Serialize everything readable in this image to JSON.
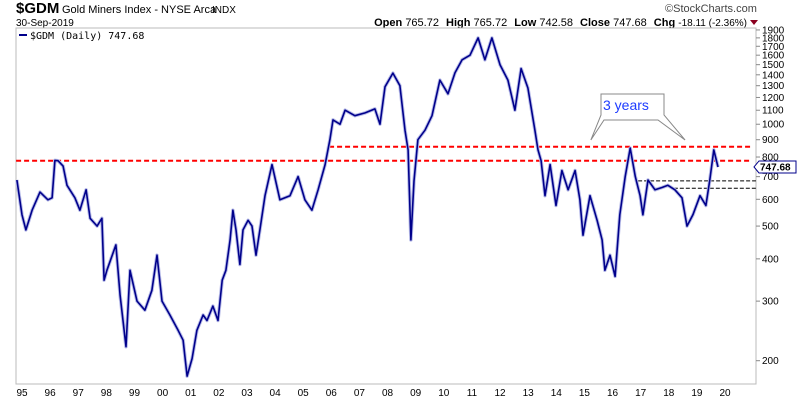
{
  "header": {
    "symbol": "$GDM",
    "name": "Gold Miners Index - NYSE Arca",
    "exchange": "INDX",
    "date": "30-Sep-2019",
    "watermark": "©StockCharts.com",
    "open_label": "Open",
    "open": "765.72",
    "high_label": "High",
    "high": "765.72",
    "low_label": "Low",
    "low": "742.58",
    "close_label": "Close",
    "close": "747.68",
    "chg_label": "Chg",
    "chg": "-18.11 (-2.36%)",
    "chg_direction": "down"
  },
  "legend": {
    "label": "$GDM (Daily) 747.68"
  },
  "colors": {
    "series": "#00008b",
    "resistance": "#ff0000",
    "support": "#000000",
    "annotation_text": "#1e3cff",
    "down": "#8b0020"
  },
  "chart_data": {
    "type": "line",
    "title": "",
    "y_scale": "log",
    "ylim": [
      180,
      1950
    ],
    "xlim": [
      1994.79,
      2021.1
    ],
    "grid": false,
    "legend_placement": "top-left",
    "y_ticks": [
      200,
      300,
      400,
      500,
      600,
      700,
      800,
      900,
      1000,
      1100,
      1200,
      1300,
      1400,
      1500,
      1600,
      1700,
      1800,
      1900
    ],
    "x_ticks": [
      {
        "year": 1995,
        "label": "95"
      },
      {
        "year": 1996,
        "label": "96"
      },
      {
        "year": 1997,
        "label": "97"
      },
      {
        "year": 1998,
        "label": "98"
      },
      {
        "year": 1999,
        "label": "99"
      },
      {
        "year": 2000,
        "label": "00"
      },
      {
        "year": 2001,
        "label": "01"
      },
      {
        "year": 2002,
        "label": "02"
      },
      {
        "year": 2003,
        "label": "03"
      },
      {
        "year": 2004,
        "label": "04"
      },
      {
        "year": 2005,
        "label": "05"
      },
      {
        "year": 2006,
        "label": "06"
      },
      {
        "year": 2007,
        "label": "07"
      },
      {
        "year": 2008,
        "label": "08"
      },
      {
        "year": 2009,
        "label": "09"
      },
      {
        "year": 2010,
        "label": "10"
      },
      {
        "year": 2011,
        "label": "11"
      },
      {
        "year": 2012,
        "label": "12"
      },
      {
        "year": 2013,
        "label": "13"
      },
      {
        "year": 2014,
        "label": "14"
      },
      {
        "year": 2015,
        "label": "15"
      },
      {
        "year": 2016,
        "label": "16"
      },
      {
        "year": 2017,
        "label": "17"
      },
      {
        "year": 2018,
        "label": "18"
      },
      {
        "year": 2019,
        "label": "19"
      },
      {
        "year": 2020,
        "label": "20"
      }
    ],
    "last_price_label": "747.68",
    "series": [
      {
        "name": "$GDM (Daily)",
        "x": [
          1994.82,
          1995.0,
          1995.14,
          1995.36,
          1995.64,
          1995.92,
          1996.07,
          1996.17,
          1996.28,
          1996.46,
          1996.6,
          1996.88,
          1997.06,
          1997.28,
          1997.42,
          1997.67,
          1997.84,
          1997.92,
          1998.02,
          1998.34,
          1998.49,
          1998.7,
          1998.84,
          1999.09,
          1999.37,
          1999.62,
          1999.8,
          1999.98,
          2000.26,
          2000.55,
          2000.73,
          2000.87,
          2001.05,
          2001.22,
          2001.44,
          2001.58,
          2001.79,
          2001.97,
          2002.12,
          2002.25,
          2002.4,
          2002.5,
          2002.61,
          2002.75,
          2002.86,
          2003.04,
          2003.18,
          2003.32,
          2003.46,
          2003.64,
          2003.89,
          2004.17,
          2004.53,
          2004.82,
          2005.06,
          2005.31,
          2005.53,
          2005.78,
          2005.95,
          2006.06,
          2006.31,
          2006.49,
          2006.84,
          2007.2,
          2007.55,
          2007.73,
          2007.91,
          2008.19,
          2008.44,
          2008.62,
          2008.73,
          2008.83,
          2008.94,
          2009.08,
          2009.33,
          2009.58,
          2009.86,
          2010.15,
          2010.4,
          2010.65,
          2010.93,
          2011.22,
          2011.46,
          2011.71,
          2012.0,
          2012.28,
          2012.53,
          2012.75,
          2012.99,
          2013.24,
          2013.35,
          2013.46,
          2013.6,
          2013.78,
          2013.99,
          2014.2,
          2014.42,
          2014.67,
          2014.84,
          2014.95,
          2015.2,
          2015.45,
          2015.63,
          2015.73,
          2015.91,
          2016.09,
          2016.26,
          2016.45,
          2016.63,
          2016.81,
          2016.98,
          2017.08,
          2017.26,
          2017.51,
          2017.76,
          2017.97,
          2018.22,
          2018.47,
          2018.65,
          2018.86,
          2019.11,
          2019.32,
          2019.46,
          2019.6,
          2019.75
        ],
        "y": [
          684,
          540,
          487,
          557,
          630,
          598,
          606,
          782,
          780,
          752,
          660,
          606,
          557,
          640,
          527,
          500,
          527,
          346,
          370,
          440,
          312,
          220,
          370,
          300,
          282,
          323,
          410,
          300,
          273,
          246,
          230,
          180,
          203,
          246,
          273,
          263,
          290,
          263,
          346,
          370,
          455,
          557,
          487,
          385,
          487,
          520,
          500,
          410,
          487,
          615,
          760,
          598,
          615,
          700,
          598,
          557,
          640,
          760,
          900,
          1030,
          1000,
          1100,
          1060,
          1080,
          1110,
          1000,
          1290,
          1416,
          1300,
          960,
          840,
          455,
          680,
          900,
          960,
          1060,
          1350,
          1230,
          1420,
          1550,
          1600,
          1800,
          1550,
          1800,
          1500,
          1350,
          1100,
          1460,
          1280,
          960,
          840,
          780,
          615,
          760,
          575,
          730,
          640,
          730,
          598,
          470,
          615,
          520,
          455,
          370,
          410,
          355,
          540,
          700,
          850,
          700,
          615,
          540,
          684,
          640,
          650,
          660,
          640,
          606,
          500,
          540,
          615,
          575,
          684,
          840,
          747.68
        ]
      }
    ],
    "horizontal_lines": [
      {
        "value": 858,
        "style": "red-dashed",
        "from_year": 2005.92,
        "to_year": 2020.96
      },
      {
        "value": 780,
        "style": "red-dashed",
        "from_year": 1994.79,
        "to_year": 2020.96
      },
      {
        "value": 680,
        "style": "black-dashed",
        "from_year": 2016.91,
        "to_year": 2021.1
      },
      {
        "value": 647,
        "style": "black-dashed",
        "from_year": 2018.18,
        "to_year": 2021.1
      }
    ],
    "annotations": [
      {
        "text": "3 years",
        "points_to_years": [
          2015.23,
          2018.58
        ]
      }
    ]
  }
}
